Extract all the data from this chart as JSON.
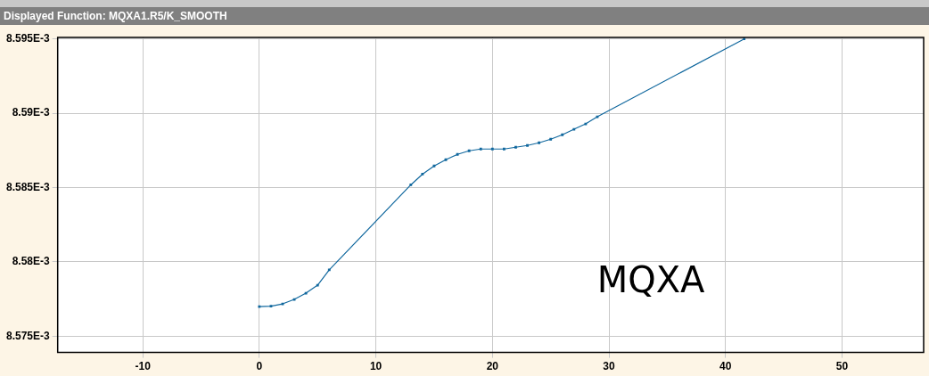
{
  "chart_data": {
    "type": "line",
    "title": "Displayed Function: MQXA1.R5/K_SMOOTH",
    "x": [
      0,
      1,
      2,
      3,
      4,
      5,
      6,
      13,
      14,
      15,
      16,
      17,
      18,
      19,
      20,
      21,
      22,
      23,
      24,
      25,
      26,
      27,
      28,
      29,
      41.6
    ],
    "series": [
      {
        "color": "#11689e",
        "values": [
          0.00857699,
          0.00857702,
          0.00857717,
          0.00857747,
          0.00857789,
          0.00857843,
          0.00857946,
          0.00858518,
          0.0085859,
          0.00858645,
          0.00858687,
          0.00858723,
          0.00858747,
          0.00858759,
          0.00858759,
          0.00858759,
          0.00858771,
          0.00858783,
          0.00858801,
          0.00858825,
          0.00858855,
          0.00858892,
          0.00858928,
          0.00858976,
          0.008595
        ]
      }
    ],
    "xlim": [
      -17.3,
      57
    ],
    "xticks": [
      -10,
      0,
      10,
      20,
      30,
      40,
      50
    ],
    "ylim": [
      0.0085739,
      0.0085951
    ],
    "yticks": [
      {
        "value": 0.008575,
        "label": "8.575E-3"
      },
      {
        "value": 0.00858,
        "label": "8.58E-3"
      },
      {
        "value": 0.008585,
        "label": "8.585E-3"
      },
      {
        "value": 0.00859,
        "label": "8.59E-3"
      },
      {
        "value": 0.008595,
        "label": "8.595E-3"
      }
    ],
    "grid": true,
    "marker": "square",
    "line_style": "solid",
    "annotations": [
      "MQXA"
    ]
  }
}
